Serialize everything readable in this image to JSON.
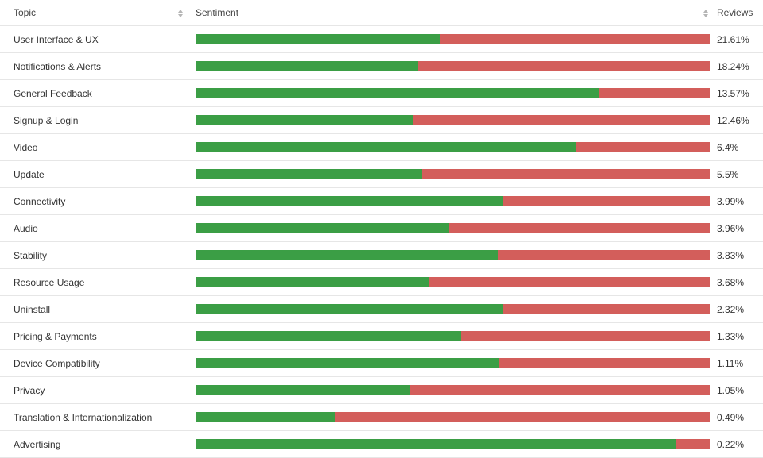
{
  "header": {
    "topic_label": "Topic",
    "sentiment_label": "Sentiment",
    "reviews_label": "Reviews"
  },
  "colors": {
    "positive": "#3b9e45",
    "negative": "#d35e5b"
  },
  "icons": {
    "topic_sort": "sort-icon",
    "sentiment_sort": "sort-icon"
  },
  "rows": [
    {
      "topic": "User Interface & UX",
      "positive_fraction": 0.475,
      "reviews": "21.61%"
    },
    {
      "topic": "Notifications & Alerts",
      "positive_fraction": 0.432,
      "reviews": "18.24%"
    },
    {
      "topic": "General Feedback",
      "positive_fraction": 0.785,
      "reviews": "13.57%"
    },
    {
      "topic": "Signup & Login",
      "positive_fraction": 0.424,
      "reviews": "12.46%"
    },
    {
      "topic": "Video",
      "positive_fraction": 0.741,
      "reviews": "6.4%"
    },
    {
      "topic": "Update",
      "positive_fraction": 0.44,
      "reviews": "5.5%"
    },
    {
      "topic": "Connectivity",
      "positive_fraction": 0.598,
      "reviews": "3.99%"
    },
    {
      "topic": "Audio",
      "positive_fraction": 0.493,
      "reviews": "3.96%"
    },
    {
      "topic": "Stability",
      "positive_fraction": 0.587,
      "reviews": "3.83%"
    },
    {
      "topic": "Resource Usage",
      "positive_fraction": 0.454,
      "reviews": "3.68%"
    },
    {
      "topic": "Uninstall",
      "positive_fraction": 0.598,
      "reviews": "2.32%"
    },
    {
      "topic": "Pricing & Payments",
      "positive_fraction": 0.516,
      "reviews": "1.33%"
    },
    {
      "topic": "Device Compatibility",
      "positive_fraction": 0.59,
      "reviews": "1.11%"
    },
    {
      "topic": "Privacy",
      "positive_fraction": 0.417,
      "reviews": "1.05%"
    },
    {
      "topic": "Translation & Internationalization",
      "positive_fraction": 0.27,
      "reviews": "0.49%"
    },
    {
      "topic": "Advertising",
      "positive_fraction": 0.933,
      "reviews": "0.22%"
    }
  ]
}
